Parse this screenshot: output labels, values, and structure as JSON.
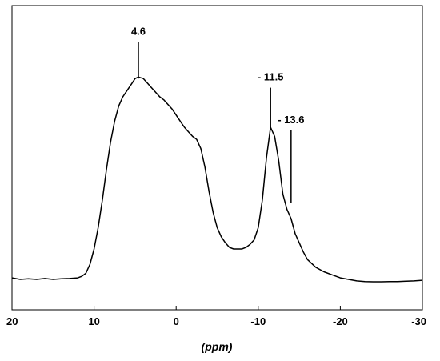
{
  "chart_data": {
    "type": "line",
    "title": "",
    "xlabel": "(ppm)",
    "ylabel": "",
    "xlim": [
      20,
      -30
    ],
    "x_reversed": true,
    "ylim": [
      0,
      1
    ],
    "grid": false,
    "legend": "none",
    "x_ticks": [
      20,
      10,
      0,
      -10,
      -20,
      -30
    ],
    "x_tick_labels": [
      "20",
      "10",
      "0",
      "-10",
      "-20",
      "-30"
    ],
    "annotations": [
      {
        "label": "4.6",
        "x": 4.6,
        "y_top": 0.88,
        "y_bottom": 0.76
      },
      {
        "label": "- 11.5",
        "x": -11.5,
        "y_top": 0.73,
        "y_bottom": 0.6
      },
      {
        "label": "- 13.6",
        "x": -14.0,
        "y_top": 0.59,
        "y_bottom": 0.35
      }
    ],
    "series": [
      {
        "color": "#000000",
        "x": [
          20,
          19,
          18,
          17,
          16,
          15,
          14,
          13,
          12,
          11.5,
          11,
          10.5,
          10,
          9.5,
          9,
          8.5,
          8,
          7.5,
          7,
          6.5,
          6,
          5.5,
          5,
          4.6,
          4,
          3.5,
          3,
          2.5,
          2,
          1.5,
          1,
          0.5,
          0,
          -0.5,
          -1,
          -1.5,
          -2,
          -2.5,
          -3,
          -3.5,
          -4,
          -4.5,
          -5,
          -5.5,
          -6,
          -6.5,
          -7,
          -7.5,
          -8,
          -8.5,
          -9,
          -9.5,
          -10,
          -10.5,
          -11,
          -11.5,
          -12,
          -12.5,
          -13,
          -13.5,
          -14,
          -14.5,
          -15,
          -15.5,
          -16,
          -17,
          -18,
          -19,
          -20,
          -21,
          -22,
          -23,
          -24,
          -25,
          -26,
          -27,
          -28,
          -29,
          -30
        ],
        "y": [
          0.105,
          0.1,
          0.102,
          0.1,
          0.103,
          0.1,
          0.102,
          0.103,
          0.105,
          0.11,
          0.12,
          0.15,
          0.2,
          0.27,
          0.36,
          0.46,
          0.55,
          0.62,
          0.67,
          0.7,
          0.72,
          0.74,
          0.76,
          0.765,
          0.76,
          0.745,
          0.73,
          0.715,
          0.7,
          0.69,
          0.675,
          0.66,
          0.64,
          0.62,
          0.6,
          0.585,
          0.57,
          0.56,
          0.53,
          0.47,
          0.39,
          0.32,
          0.27,
          0.24,
          0.22,
          0.205,
          0.2,
          0.2,
          0.2,
          0.205,
          0.215,
          0.23,
          0.27,
          0.36,
          0.5,
          0.6,
          0.57,
          0.49,
          0.38,
          0.33,
          0.3,
          0.25,
          0.22,
          0.19,
          0.165,
          0.14,
          0.125,
          0.115,
          0.105,
          0.1,
          0.095,
          0.093,
          0.092,
          0.092,
          0.093,
          0.093,
          0.094,
          0.095,
          0.097
        ]
      }
    ]
  }
}
